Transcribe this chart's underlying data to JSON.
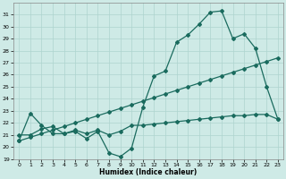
{
  "xlabel": "Humidex (Indice chaleur)",
  "background_color": "#ceeae6",
  "grid_color": "#aed4cf",
  "line_color": "#1a6b5e",
  "xlim": [
    -0.5,
    23.5
  ],
  "ylim": [
    19,
    32
  ],
  "yticks": [
    19,
    20,
    21,
    22,
    23,
    24,
    25,
    26,
    27,
    28,
    29,
    30,
    31
  ],
  "xticks": [
    0,
    1,
    2,
    3,
    4,
    5,
    6,
    7,
    8,
    9,
    10,
    11,
    12,
    13,
    14,
    15,
    16,
    17,
    18,
    19,
    20,
    21,
    22,
    23
  ],
  "line1_x": [
    0,
    1,
    2,
    3,
    4,
    5,
    6,
    7,
    8,
    9,
    10,
    11,
    12,
    13,
    14,
    15,
    16,
    17,
    18,
    19,
    20,
    21,
    22,
    23
  ],
  "line1_y": [
    20.5,
    22.8,
    21.8,
    21.1,
    21.1,
    21.3,
    20.7,
    21.3,
    19.5,
    19.2,
    19.9,
    23.3,
    25.9,
    26.3,
    28.7,
    29.3,
    30.2,
    31.2,
    31.3,
    29.0,
    29.4,
    28.2,
    25.0,
    22.3
  ],
  "line2_x": [
    0,
    1,
    2,
    3,
    4,
    5,
    6,
    7,
    8,
    9,
    10,
    11,
    12,
    13,
    14,
    15,
    16,
    17,
    18,
    19,
    20,
    21,
    22,
    23
  ],
  "line2_y": [
    20.5,
    20.8,
    21.1,
    21.4,
    21.7,
    22.0,
    22.3,
    22.6,
    22.9,
    23.2,
    23.5,
    23.8,
    24.1,
    24.4,
    24.7,
    25.0,
    25.3,
    25.6,
    25.9,
    26.2,
    26.5,
    26.8,
    27.1,
    27.4
  ],
  "line3_x": [
    0,
    1,
    2,
    3,
    4,
    5,
    6,
    7,
    8,
    9,
    10,
    11,
    12,
    13,
    14,
    15,
    16,
    17,
    18,
    19,
    20,
    21,
    22,
    23
  ],
  "line3_y": [
    21.0,
    21.0,
    21.5,
    21.7,
    21.1,
    21.4,
    21.1,
    21.4,
    21.0,
    21.3,
    21.8,
    21.8,
    21.9,
    22.0,
    22.1,
    22.2,
    22.3,
    22.4,
    22.5,
    22.6,
    22.6,
    22.7,
    22.7,
    22.3
  ]
}
